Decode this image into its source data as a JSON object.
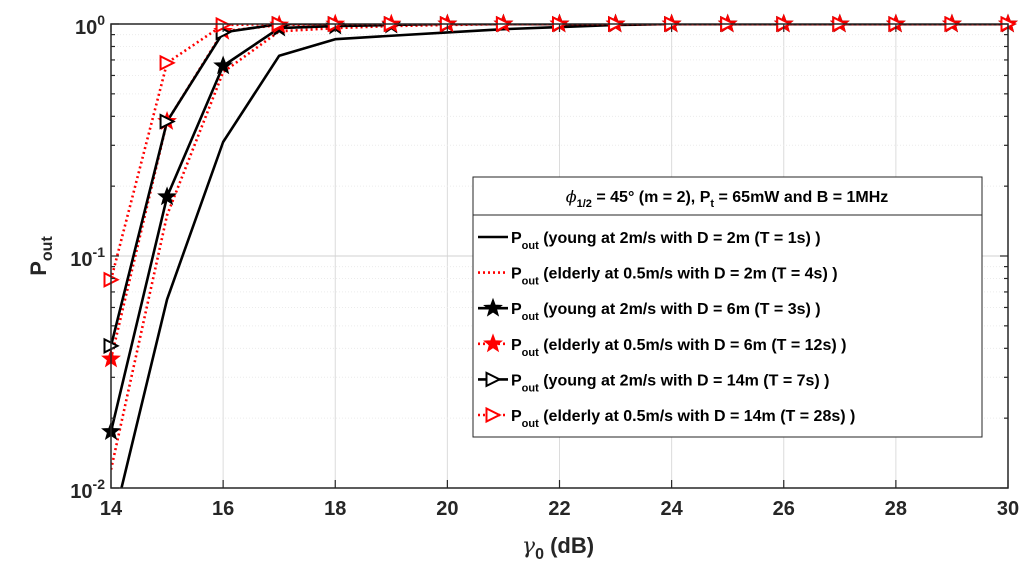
{
  "chart_data": {
    "type": "line",
    "yscale": "log",
    "xlim": [
      14,
      30
    ],
    "ylim": [
      0.01,
      1
    ],
    "grid": true,
    "legend_position": "center-right",
    "xlabel": {
      "symbol": "γ",
      "sub": "0",
      "unit": " (dB)"
    },
    "ylabel": {
      "main": "P",
      "sub": "out"
    },
    "x_ticks": [
      "14",
      "16",
      "18",
      "20",
      "22",
      "24",
      "26",
      "28",
      "30"
    ],
    "y_ticks": [
      {
        "base": "10",
        "exp": "0"
      },
      {
        "base": "10",
        "exp": "-1"
      },
      {
        "base": "10",
        "exp": "-2"
      }
    ],
    "legend_title": {
      "phi": "ϕ",
      "phi_sub": "1/2",
      "part1": " = 45° (m = 2), P",
      "pt_sub": "t",
      "part2": " = 65mW and B = 1MHz"
    },
    "series": [
      {
        "name_main": "P",
        "name_sub": "out",
        "name_rest": " (young at 2m/s with D = 2m (T = 1s) )",
        "color": "#000000",
        "dash": "solid",
        "marker": "none",
        "x": [
          14,
          15,
          16,
          17,
          18,
          19,
          20,
          21,
          22,
          23,
          24,
          25,
          26,
          27,
          28,
          29,
          30
        ],
        "values": [
          0.0065,
          0.065,
          0.31,
          0.73,
          0.86,
          0.89,
          0.92,
          0.95,
          0.97,
          0.99,
          1,
          1,
          1,
          1,
          1,
          1,
          1
        ]
      },
      {
        "name_main": "P",
        "name_sub": "out",
        "name_rest": " (elderly at 0.5m/s with D = 2m (T = 4s) )",
        "color": "#ff0000",
        "dash": "dotted",
        "marker": "none",
        "x": [
          14,
          15,
          16,
          17,
          18,
          19,
          20,
          21,
          22,
          23,
          24,
          25,
          26,
          27,
          28,
          29,
          30
        ],
        "values": [
          0.012,
          0.15,
          0.62,
          0.93,
          0.96,
          0.98,
          0.99,
          1,
          1,
          1,
          1,
          1,
          1,
          1,
          1,
          1,
          1
        ]
      },
      {
        "name_main": "P",
        "name_sub": "out",
        "name_rest": " (young at 2m/s with D = 6m (T = 3s) )",
        "color": "#000000",
        "dash": "solid",
        "marker": "star",
        "x": [
          14,
          15,
          16,
          17,
          18,
          19,
          20,
          21,
          22,
          23,
          24,
          25,
          26,
          27,
          28,
          29,
          30
        ],
        "values": [
          0.0175,
          0.18,
          0.66,
          0.96,
          0.98,
          0.99,
          1,
          1,
          1,
          1,
          1,
          1,
          1,
          1,
          1,
          1,
          1
        ]
      },
      {
        "name_main": "P",
        "name_sub": "out",
        "name_rest": " (elderly at 0.5m/s with D = 6m (T = 12s) )",
        "color": "#ff0000",
        "dash": "dotted",
        "marker": "star",
        "x": [
          14,
          15,
          16,
          17,
          18,
          19,
          20,
          21,
          22,
          23,
          24,
          25,
          26,
          27,
          28,
          29,
          30
        ],
        "values": [
          0.036,
          0.38,
          0.93,
          0.99,
          1,
          1,
          1,
          1,
          1,
          1,
          1,
          1,
          1,
          1,
          1,
          1,
          1
        ]
      },
      {
        "name_main": "P",
        "name_sub": "out",
        "name_rest": " (young at 2m/s with D = 14m (T = 7s) )",
        "color": "#000000",
        "dash": "solid",
        "marker": "triangle-right",
        "x": [
          14,
          15,
          16,
          17,
          18,
          19,
          20,
          21,
          22,
          23,
          24,
          25,
          26,
          27,
          28,
          29,
          30
        ],
        "values": [
          0.041,
          0.38,
          0.92,
          1,
          1,
          1,
          1,
          1,
          1,
          1,
          1,
          1,
          1,
          1,
          1,
          1,
          1
        ]
      },
      {
        "name_main": "P",
        "name_sub": "out",
        "name_rest": " (elderly at 0.5m/s with D = 14m (T = 28s) )",
        "color": "#ff0000",
        "dash": "dotted",
        "marker": "triangle-right",
        "x": [
          14,
          15,
          16,
          17,
          18,
          19,
          20,
          21,
          22,
          23,
          24,
          25,
          26,
          27,
          28,
          29,
          30
        ],
        "values": [
          0.079,
          0.68,
          0.99,
          1,
          1,
          1,
          1,
          1,
          1,
          1,
          1,
          1,
          1,
          1,
          1,
          1,
          1
        ]
      }
    ]
  }
}
